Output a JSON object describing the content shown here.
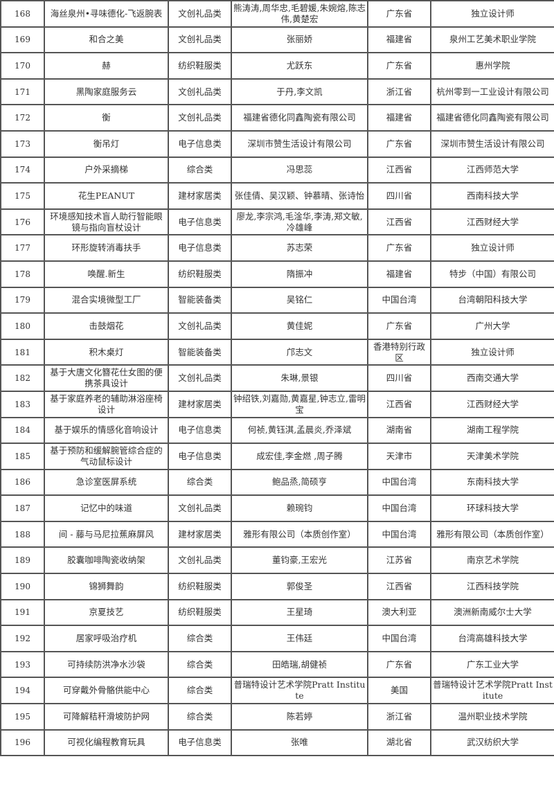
{
  "rows": [
    [
      "168",
      "海丝泉州•寻味德化-飞返腕表",
      "文创礼品类",
      "熊涛涛,周华忠,毛碧媛,朱婉熔,陈志伟,黄楚宏",
      "广东省",
      "独立设计师"
    ],
    [
      "169",
      "和合之美",
      "文创礼品类",
      "张丽娇",
      "福建省",
      "泉州工艺美术职业学院"
    ],
    [
      "170",
      "赫",
      "纺织鞋服类",
      "尤跃东",
      "广东省",
      "惠州学院"
    ],
    [
      "171",
      "黑陶家庭服务云",
      "文创礼品类",
      "于丹,李文凯",
      "浙江省",
      "杭州零到一工业设计有限公司"
    ],
    [
      "172",
      "衡",
      "文创礼品类",
      "福建省德化同鑫陶瓷有限公司",
      "福建省",
      "福建省德化同鑫陶瓷有限公司"
    ],
    [
      "173",
      "衡吊灯",
      "电子信息类",
      "深圳市赞生活设计有限公司",
      "广东省",
      "深圳市赞生活设计有限公司"
    ],
    [
      "174",
      "户外采摘梯",
      "综合类",
      "冯思蕊",
      "江西省",
      "江西师范大学"
    ],
    [
      "175",
      "花生PEANUT",
      "建材家居类",
      "张佳倩、吴汉颖、钟慕晴、张诗怡",
      "四川省",
      "西南科技大学"
    ],
    [
      "176",
      "环境感知技术盲人助行智能眼镜与指向盲杖设计",
      "电子信息类",
      "廖龙,李宗鸿,毛淦华,李涛,郑文敏,冷雄峰",
      "江西省",
      "江西财经大学"
    ],
    [
      "177",
      "环形旋转消毒扶手",
      "电子信息类",
      "苏志荣",
      "广东省",
      "独立设计师"
    ],
    [
      "178",
      "唤醒.新生",
      "纺织鞋服类",
      "隋振冲",
      "福建省",
      "特步（中国）有限公司"
    ],
    [
      "179",
      "混合实境微型工厂",
      "智能装备类",
      "吴铭仁",
      "中国台湾",
      "台湾朝阳科技大学"
    ],
    [
      "180",
      "击鼓烟花",
      "文创礼品类",
      "黄佳妮",
      "广东省",
      "广州大学"
    ],
    [
      "181",
      "积木桌灯",
      "智能装备类",
      "邝志文",
      "香港特别行政区",
      "独立设计师"
    ],
    [
      "182",
      "基于大唐文化簪花仕女图的便携茶具设计",
      "文创礼品类",
      "朱琳,景银",
      "四川省",
      "西南交通大学"
    ],
    [
      "183",
      "基于家庭养老的辅助淋浴座椅设计",
      "建材家居类",
      "钟绍铁,刘嘉勋,黄嘉星,钟志立,雷明宝",
      "江西省",
      "江西财经大学"
    ],
    [
      "184",
      "基于娱乐的情感化音响设计",
      "电子信息类",
      "何祯,黄钰淇,孟晨炎,乔泽斌",
      "湖南省",
      "湖南工程学院"
    ],
    [
      "185",
      "基于预防和缓解腕管综合症的气动鼠标设计",
      "电子信息类",
      "成宏佳,李金燃 ,周子腾",
      "天津市",
      "天津美术学院"
    ],
    [
      "186",
      "急诊室医屏系统",
      "综合类",
      "鲍品烝,简硕亨",
      "中国台湾",
      "东南科技大学"
    ],
    [
      "187",
      "记忆中的味道",
      "文创礼品类",
      "赖琬钧",
      "中国台湾",
      "环球科技大学"
    ],
    [
      "188",
      "间 - 藤与马尼拉蕉麻屏风",
      "建材家居类",
      "雅形有限公司（本质创作室）",
      "中国台湾",
      "雅形有限公司（本质创作室）"
    ],
    [
      "189",
      "胶囊咖啡陶瓷收纳架",
      "文创礼品类",
      "董钧豪,王宏光",
      "江苏省",
      "南京艺术学院"
    ],
    [
      "190",
      "锦狮舞韵",
      "纺织鞋服类",
      "郭俊圣",
      "江西省",
      "江西科技学院"
    ],
    [
      "191",
      "京夏技艺",
      "纺织鞋服类",
      "王星琦",
      "澳大利亚",
      "澳洲新南威尔士大学"
    ],
    [
      "192",
      "居家呼吸治疗机",
      "综合类",
      "王伟廷",
      "中国台湾",
      "台湾高雄科技大学"
    ],
    [
      "193",
      "可持续防洪净水沙袋",
      "综合类",
      "田皓瑞,胡健祯",
      "广东省",
      "广东工业大学"
    ],
    [
      "194",
      "可穿戴外骨骼供能中心",
      "综合类",
      "普瑞特设计艺术学院Pratt Institute",
      "美国",
      "普瑞特设计艺术学院Pratt Institute"
    ],
    [
      "195",
      "可降解秸秆滑坡防护网",
      "综合类",
      "陈若婷",
      "浙江省",
      "温州职业技术学院"
    ],
    [
      "196",
      "可视化编程教育玩具",
      "电子信息类",
      "张唯",
      "湖北省",
      "武汉纺织大学"
    ]
  ]
}
